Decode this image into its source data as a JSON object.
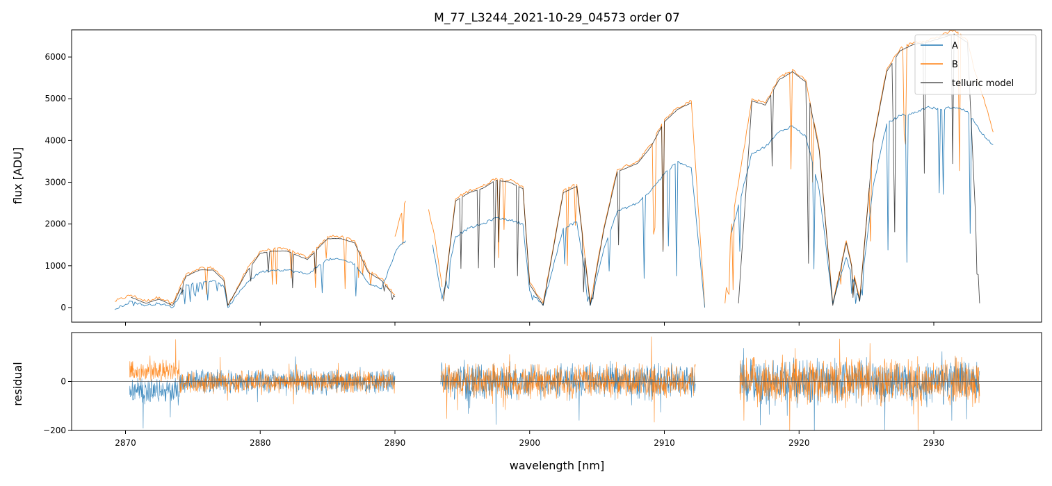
{
  "chart_data": [
    {
      "type": "line",
      "title": "M_77_L3244_2021-10-29_04573  order 07",
      "xlabel": "",
      "ylabel": "flux [ADU]",
      "xlim": [
        2866,
        2938
      ],
      "ylim": [
        -350,
        6650
      ],
      "xticks": [
        2870,
        2880,
        2890,
        2900,
        2910,
        2920,
        2930
      ],
      "yticks": [
        0,
        1000,
        2000,
        3000,
        4000,
        5000,
        6000
      ],
      "legend": {
        "position": "top-right",
        "entries": [
          "A",
          "B",
          "telluric model"
        ]
      },
      "colors": {
        "A": "#1f77b4",
        "B": "#ff7f0e",
        "telluric model": "#000000"
      },
      "series": [
        {
          "name": "B",
          "segments": [
            {
              "x": [
                2869.2,
                2870.4,
                2871.5,
                2872.5,
                2873.5,
                2874.5,
                2875.5,
                2876.5,
                2877.3,
                2877.6,
                2879.0,
                2880.0,
                2881.0,
                2882.0,
                2883.5,
                2885.0,
                2886.0,
                2887.0,
                2888.0,
                2889.0,
                2890.0
              ],
              "y": [
                150,
                300,
                150,
                250,
                100,
                800,
                950,
                950,
                700,
                50,
                900,
                1350,
                1400,
                1400,
                1200,
                1700,
                1700,
                1600,
                900,
                700,
                300
              ]
            },
            {
              "x": [
                2890.0,
                2890.4,
                2890.8
              ],
              "y": [
                1700,
                2200,
                2550
              ]
            },
            {
              "x": [
                2892.5,
                2893.0,
                2893.5
              ],
              "y": [
                2350,
                1600,
                500
              ]
            },
            {
              "x": [
                2893.6,
                2894.5,
                2895.5,
                2896.5,
                2897.5,
                2898.5,
                2899.5,
                2900.0,
                2901.0,
                2902.5,
                2903.5,
                2904.5,
                2905.5,
                2906.5,
                2908.0,
                2909.0,
                2910.0,
                2911.0,
                2912.0,
                2913.0
              ],
              "y": [
                200,
                2600,
                2800,
                2900,
                3100,
                3050,
                2900,
                600,
                100,
                2800,
                2950,
                100,
                1900,
                3300,
                3500,
                3900,
                4500,
                4800,
                4950,
                0
              ]
            },
            {
              "x": [
                2914.5,
                2915.0,
                2916.5,
                2917.5,
                2918.5,
                2919.5,
                2920.5,
                2921.5,
                2922.5,
                2923.5,
                2924.5,
                2925.5,
                2926.5,
                2927.5,
                2928.5,
                2929.5,
                2930.5,
                2931.5,
                2932.5,
                2933.0,
                2933.5,
                2934.0,
                2934.4
              ],
              "y": [
                100,
                2000,
                5000,
                4900,
                5500,
                5700,
                5450,
                3800,
                100,
                1600,
                200,
                4000,
                5700,
                6200,
                6350,
                6400,
                6500,
                6650,
                6400,
                5700,
                5200,
                4700,
                4200
              ]
            }
          ]
        },
        {
          "name": "A",
          "segments": [
            {
              "x": [
                2869.2,
                2870.4,
                2871.5,
                2872.5,
                2873.5,
                2874.5,
                2875.5,
                2876.5,
                2877.3,
                2877.6,
                2879.0,
                2880.0,
                2881.0,
                2882.0,
                2883.5,
                2885.0,
                2886.0,
                2887.0,
                2888.0,
                2889.0,
                2890.0,
                2890.4,
                2890.8
              ],
              "y": [
                -50,
                150,
                50,
                100,
                0,
                550,
                600,
                650,
                500,
                0,
                600,
                850,
                900,
                900,
                800,
                1150,
                1150,
                1050,
                600,
                450,
                1300,
                1500,
                1600
              ]
            },
            {
              "x": [
                2892.8,
                2893.5,
                2894.5,
                2895.5,
                2896.5,
                2897.5,
                2898.5,
                2899.5,
                2900.0,
                2901.0,
                2902.5,
                2903.5,
                2904.5,
                2905.5,
                2906.5,
                2908.0,
                2909.0,
                2910.0,
                2911.0,
                2912.0,
                2913.0
              ],
              "y": [
                1500,
                200,
                1700,
                1900,
                2000,
                2150,
                2100,
                2000,
                400,
                50,
                1900,
                2050,
                50,
                1400,
                2300,
                2500,
                2800,
                3200,
                3500,
                3350,
                0
              ]
            },
            {
              "x": [
                2915.0,
                2916.5,
                2917.5,
                2918.5,
                2919.5,
                2920.5,
                2921.5,
                2922.5,
                2923.5,
                2924.5,
                2925.5,
                2926.5,
                2927.5,
                2928.5,
                2929.5,
                2930.5,
                2931.5,
                2932.5,
                2933.5,
                2934.4
              ],
              "y": [
                1800,
                3700,
                3850,
                4200,
                4350,
                4100,
                2800,
                100,
                1200,
                150,
                2900,
                4400,
                4600,
                4650,
                4800,
                4750,
                4800,
                4700,
                4200,
                3900
              ]
            }
          ]
        },
        {
          "name": "telluric model",
          "segments": [
            {
              "x": [
                2870.4,
                2871.5,
                2872.5,
                2873.5,
                2874.5,
                2875.5,
                2876.5,
                2877.3,
                2877.6,
                2879.0,
                2880.0,
                2881.0,
                2882.0,
                2883.5,
                2885.0,
                2886.0,
                2887.0,
                2888.0,
                2889.0,
                2890.0
              ],
              "y": [
                250,
                100,
                200,
                50,
                750,
                900,
                900,
                650,
                50,
                850,
                1300,
                1350,
                1350,
                1150,
                1650,
                1650,
                1550,
                850,
                650,
                250
              ]
            },
            {
              "x": [
                2893.6,
                2894.5,
                2895.5,
                2896.5,
                2897.5,
                2898.5,
                2899.5,
                2900.0,
                2901.0,
                2902.5,
                2903.5,
                2904.5,
                2905.5,
                2906.5,
                2908.0,
                2909.0,
                2910.0,
                2911.0,
                2912.0
              ],
              "y": [
                150,
                2550,
                2750,
                2850,
                3050,
                3000,
                2850,
                550,
                50,
                2750,
                2900,
                50,
                1850,
                3250,
                3450,
                3850,
                4450,
                4750,
                4900
              ]
            },
            {
              "x": [
                2915.5,
                2916.5,
                2917.5,
                2918.5,
                2919.5,
                2920.5,
                2921.5,
                2922.5,
                2923.5,
                2924.5,
                2925.5,
                2926.5,
                2927.5,
                2928.5,
                2929.5,
                2930.5,
                2931.5,
                2932.5,
                2933.4
              ],
              "y": [
                100,
                4950,
                4850,
                5450,
                5650,
                5400,
                3750,
                50,
                1550,
                150,
                3950,
                5650,
                6150,
                6300,
                6350,
                6450,
                6550,
                6350,
                100
              ]
            }
          ]
        }
      ]
    },
    {
      "type": "line",
      "title": "",
      "xlabel": "wavelength [nm]",
      "ylabel": "residual",
      "xlim": [
        2866,
        2938
      ],
      "ylim": [
        -200,
        200
      ],
      "xticks": [
        2870,
        2880,
        2890,
        2900,
        2910,
        2920,
        2930
      ],
      "yticks": [
        -200,
        0
      ],
      "reference_line": 0,
      "series": [
        {
          "name": "A",
          "ranges": [
            [
              2870.3,
              2890.0
            ],
            [
              2893.4,
              2912.3
            ],
            [
              2915.6,
              2933.4
            ]
          ],
          "noise_amplitude": [
            60,
            85,
            110
          ],
          "offset_note": "negative dip near 2871-2874"
        },
        {
          "name": "B",
          "ranges": [
            [
              2870.3,
              2890.0
            ],
            [
              2893.4,
              2912.3
            ],
            [
              2915.6,
              2933.4
            ]
          ],
          "noise_amplitude": [
            55,
            85,
            115
          ],
          "offset_note": "positive near 2871-2873"
        }
      ]
    }
  ]
}
